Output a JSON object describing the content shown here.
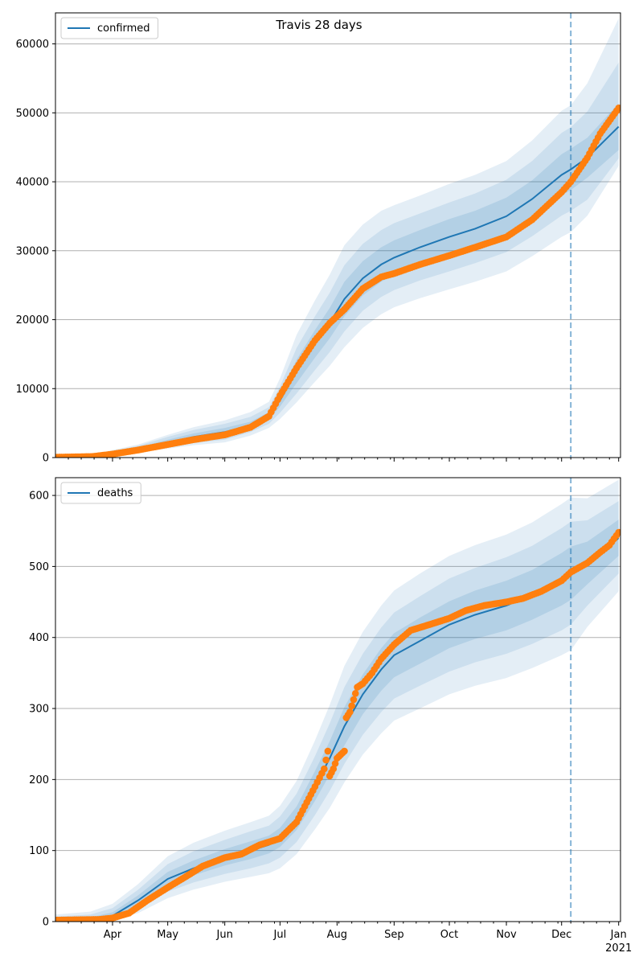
{
  "figure": {
    "title": "Travis 28 days"
  },
  "style": {
    "line_color": "#1f77b4",
    "band_color": "#1f77b4",
    "obs_color": "#ff7f0e",
    "grid_color": "#b0b0b0"
  },
  "xaxis": {
    "start": "2020-03-01",
    "end": "2021-01-02",
    "ticks": [
      {
        "date": "2020-04-01",
        "label": "Apr"
      },
      {
        "date": "2020-05-01",
        "label": "May"
      },
      {
        "date": "2020-06-01",
        "label": "Jun"
      },
      {
        "date": "2020-07-01",
        "label": "Jul"
      },
      {
        "date": "2020-08-01",
        "label": "Aug"
      },
      {
        "date": "2020-09-01",
        "label": "Sep"
      },
      {
        "date": "2020-10-01",
        "label": "Oct"
      },
      {
        "date": "2020-11-01",
        "label": "Nov"
      },
      {
        "date": "2020-12-01",
        "label": "Dec"
      },
      {
        "date": "2021-01-01",
        "label": "Jan"
      }
    ],
    "year_label": "2021",
    "forecast_start": "2020-12-06"
  },
  "chart_data": [
    {
      "type": "line",
      "legend": "confirmed",
      "legend_position": "upper-left",
      "ylim": [
        0,
        64500
      ],
      "yticks": [
        {
          "value": 0,
          "label": "0"
        },
        {
          "value": 10000,
          "label": "10000"
        },
        {
          "value": 20000,
          "label": "20000"
        },
        {
          "value": 30000,
          "label": "30000"
        },
        {
          "value": 40000,
          "label": "40000"
        },
        {
          "value": 50000,
          "label": "50000"
        },
        {
          "value": 60000,
          "label": "60000"
        }
      ],
      "grid": "horizontal",
      "model": {
        "x": [
          "2020-03-01",
          "2020-03-20",
          "2020-04-01",
          "2020-04-15",
          "2020-05-01",
          "2020-05-15",
          "2020-06-01",
          "2020-06-15",
          "2020-06-25",
          "2020-07-01",
          "2020-07-10",
          "2020-07-20",
          "2020-07-28",
          "2020-08-05",
          "2020-08-15",
          "2020-08-25",
          "2020-09-01",
          "2020-09-15",
          "2020-10-01",
          "2020-10-15",
          "2020-11-01",
          "2020-11-15",
          "2020-12-01",
          "2020-12-06",
          "2020-12-15",
          "2021-01-01"
        ],
        "y": [
          100,
          200,
          700,
          1300,
          2200,
          3000,
          3700,
          4700,
          6000,
          8300,
          12500,
          16500,
          19500,
          23000,
          26000,
          28000,
          29000,
          30500,
          32000,
          33200,
          35000,
          37500,
          41000,
          41800,
          43500,
          48000
        ],
        "band1": [
          [
            100,
            100
          ],
          [
            180,
            220
          ],
          [
            600,
            800
          ],
          [
            1100,
            1500
          ],
          [
            1800,
            2600
          ],
          [
            2500,
            3500
          ],
          [
            3100,
            4300
          ],
          [
            4200,
            5200
          ],
          [
            5500,
            6600
          ],
          [
            7400,
            9300
          ],
          [
            10800,
            14200
          ],
          [
            14500,
            18500
          ],
          [
            17300,
            21700
          ],
          [
            20500,
            25500
          ],
          [
            23500,
            28500
          ],
          [
            25500,
            30500
          ],
          [
            26500,
            31500
          ],
          [
            28000,
            33000
          ],
          [
            29400,
            34600
          ],
          [
            30600,
            35800
          ],
          [
            32300,
            37700
          ],
          [
            34800,
            40200
          ],
          [
            38000,
            44000
          ],
          [
            38800,
            44800
          ],
          [
            40600,
            46400
          ],
          [
            44600,
            51400
          ]
        ],
        "band2": [
          [
            80,
            120
          ],
          [
            150,
            260
          ],
          [
            500,
            950
          ],
          [
            950,
            1700
          ],
          [
            1500,
            3000
          ],
          [
            2100,
            4000
          ],
          [
            2600,
            4900
          ],
          [
            3700,
            5900
          ],
          [
            4900,
            7300
          ],
          [
            6500,
            10300
          ],
          [
            9300,
            15900
          ],
          [
            12700,
            20500
          ],
          [
            15300,
            23900
          ],
          [
            18300,
            27900
          ],
          [
            21300,
            31000
          ],
          [
            23300,
            33000
          ],
          [
            24300,
            34000
          ],
          [
            25700,
            35400
          ],
          [
            27000,
            37000
          ],
          [
            28200,
            38300
          ],
          [
            29800,
            40300
          ],
          [
            32100,
            43000
          ],
          [
            35100,
            47100
          ],
          [
            35800,
            47900
          ],
          [
            37400,
            50200
          ],
          [
            43400,
            57300
          ]
        ],
        "band3": [
          [
            60,
            150
          ],
          [
            120,
            300
          ],
          [
            400,
            1100
          ],
          [
            800,
            1900
          ],
          [
            1300,
            3300
          ],
          [
            1800,
            4400
          ],
          [
            2200,
            5400
          ],
          [
            3200,
            6600
          ],
          [
            4300,
            8100
          ],
          [
            5600,
            11500
          ],
          [
            8000,
            17800
          ],
          [
            11000,
            22800
          ],
          [
            13300,
            26500
          ],
          [
            16000,
            30800
          ],
          [
            18800,
            33800
          ],
          [
            20800,
            35800
          ],
          [
            21800,
            36600
          ],
          [
            23100,
            38000
          ],
          [
            24400,
            39700
          ],
          [
            25500,
            41000
          ],
          [
            27000,
            43000
          ],
          [
            29200,
            46000
          ],
          [
            32000,
            50300
          ],
          [
            32700,
            51100
          ],
          [
            35100,
            54300
          ],
          [
            42300,
            63700
          ]
        ]
      },
      "observed": {
        "x": [
          "2020-03-01",
          "2020-03-21",
          "2020-04-01",
          "2020-04-15",
          "2020-05-01",
          "2020-05-15",
          "2020-06-01",
          "2020-06-15",
          "2020-06-25",
          "2020-07-01",
          "2020-07-10",
          "2020-07-20",
          "2020-07-28",
          "2020-08-05",
          "2020-08-15",
          "2020-08-25",
          "2020-09-01",
          "2020-09-15",
          "2020-10-01",
          "2020-10-15",
          "2020-11-01",
          "2020-11-15",
          "2020-12-01",
          "2020-12-06",
          "2020-12-15",
          "2020-12-22",
          "2021-01-01"
        ],
        "y": [
          50,
          150,
          500,
          1100,
          1900,
          2600,
          3300,
          4400,
          6000,
          9000,
          13000,
          17000,
          19500,
          21500,
          24500,
          26200,
          26700,
          28000,
          29300,
          30500,
          32000,
          34500,
          38500,
          40000,
          43500,
          47000,
          50700
        ]
      }
    },
    {
      "type": "line",
      "legend": "deaths",
      "legend_position": "upper-left",
      "ylim": [
        0,
        625
      ],
      "yticks": [
        {
          "value": 0,
          "label": "0"
        },
        {
          "value": 100,
          "label": "100"
        },
        {
          "value": 200,
          "label": "200"
        },
        {
          "value": 300,
          "label": "300"
        },
        {
          "value": 400,
          "label": "400"
        },
        {
          "value": 500,
          "label": "500"
        },
        {
          "value": 600,
          "label": "600"
        }
      ],
      "grid": "horizontal",
      "model": {
        "x": [
          "2020-03-01",
          "2020-03-20",
          "2020-04-01",
          "2020-04-15",
          "2020-05-01",
          "2020-05-15",
          "2020-06-01",
          "2020-06-15",
          "2020-06-25",
          "2020-07-01",
          "2020-07-10",
          "2020-07-20",
          "2020-07-28",
          "2020-08-05",
          "2020-08-15",
          "2020-08-25",
          "2020-09-01",
          "2020-09-15",
          "2020-10-01",
          "2020-10-15",
          "2020-11-01",
          "2020-11-15",
          "2020-12-01",
          "2020-12-06",
          "2020-12-15",
          "2021-01-01"
        ],
        "y": [
          2,
          3,
          8,
          30,
          60,
          75,
          90,
          100,
          108,
          118,
          145,
          190,
          230,
          275,
          320,
          355,
          375,
          395,
          418,
          432,
          445,
          460,
          482,
          490,
          505,
          540
        ],
        "band1": [
          [
            1,
            4
          ],
          [
            2,
            6
          ],
          [
            5,
            13
          ],
          [
            24,
            37
          ],
          [
            51,
            70
          ],
          [
            65,
            86
          ],
          [
            79,
            102
          ],
          [
            88,
            113
          ],
          [
            96,
            121
          ],
          [
            105,
            132
          ],
          [
            129,
            162
          ],
          [
            170,
            212
          ],
          [
            207,
            254
          ],
          [
            248,
            302
          ],
          [
            292,
            348
          ],
          [
            325,
            385
          ],
          [
            344,
            406
          ],
          [
            363,
            428
          ],
          [
            385,
            451
          ],
          [
            398,
            466
          ],
          [
            410,
            480
          ],
          [
            425,
            495
          ],
          [
            445,
            519
          ],
          [
            453,
            528
          ],
          [
            475,
            535
          ],
          [
            515,
            566
          ]
        ],
        "band2": [
          [
            0,
            7
          ],
          [
            1,
            10
          ],
          [
            3,
            19
          ],
          [
            18,
            45
          ],
          [
            42,
            81
          ],
          [
            55,
            99
          ],
          [
            67,
            115
          ],
          [
            75,
            127
          ],
          [
            82,
            135
          ],
          [
            90,
            148
          ],
          [
            112,
            180
          ],
          [
            150,
            233
          ],
          [
            184,
            279
          ],
          [
            222,
            330
          ],
          [
            263,
            377
          ],
          [
            295,
            414
          ],
          [
            314,
            435
          ],
          [
            332,
            458
          ],
          [
            352,
            483
          ],
          [
            365,
            498
          ],
          [
            377,
            513
          ],
          [
            391,
            529
          ],
          [
            410,
            554
          ],
          [
            418,
            563
          ],
          [
            445,
            565
          ],
          [
            490,
            592
          ]
        ],
        "band3": [
          [
            0,
            10
          ],
          [
            0,
            14
          ],
          [
            2,
            25
          ],
          [
            12,
            53
          ],
          [
            33,
            92
          ],
          [
            45,
            111
          ],
          [
            56,
            128
          ],
          [
            63,
            140
          ],
          [
            68,
            149
          ],
          [
            75,
            163
          ],
          [
            95,
            198
          ],
          [
            130,
            255
          ],
          [
            160,
            305
          ],
          [
            196,
            360
          ],
          [
            235,
            408
          ],
          [
            265,
            445
          ],
          [
            283,
            466
          ],
          [
            300,
            490
          ],
          [
            320,
            515
          ],
          [
            332,
            530
          ],
          [
            343,
            545
          ],
          [
            357,
            562
          ],
          [
            375,
            588
          ],
          [
            382,
            597
          ],
          [
            415,
            596
          ],
          [
            465,
            622
          ]
        ]
      },
      "observed": {
        "x": [
          "2020-03-01",
          "2020-03-25",
          "2020-04-01",
          "2020-04-10",
          "2020-04-20",
          "2020-05-01",
          "2020-05-10",
          "2020-05-20",
          "2020-06-01",
          "2020-06-10",
          "2020-06-20",
          "2020-07-01",
          "2020-07-10",
          "2020-07-20",
          "2020-07-25",
          "2020-07-27",
          "2020-07-28",
          "2020-07-30",
          "2020-08-01",
          "2020-08-03",
          "2020-08-05",
          "2020-08-06",
          "2020-08-08",
          "2020-08-12",
          "2020-08-15",
          "2020-08-20",
          "2020-08-25",
          "2020-09-01",
          "2020-09-10",
          "2020-09-20",
          "2020-10-01",
          "2020-10-10",
          "2020-10-20",
          "2020-11-01",
          "2020-11-10",
          "2020-11-20",
          "2020-12-01",
          "2020-12-06",
          "2020-12-15",
          "2020-12-22",
          "2020-12-27",
          "2021-01-01"
        ],
        "y": [
          2,
          3,
          5,
          12,
          30,
          48,
          62,
          78,
          90,
          95,
          108,
          117,
          140,
          190,
          215,
          240,
          205,
          215,
          230,
          235,
          240,
          287,
          295,
          330,
          335,
          350,
          370,
          390,
          410,
          418,
          427,
          438,
          445,
          450,
          455,
          465,
          480,
          492,
          505,
          520,
          530,
          548
        ]
      }
    }
  ]
}
